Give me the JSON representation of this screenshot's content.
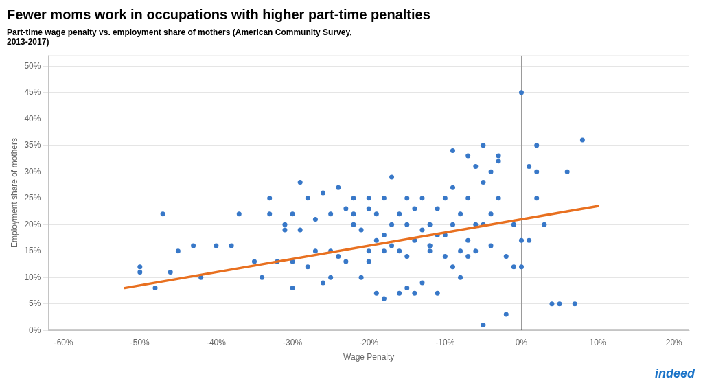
{
  "chart_data": {
    "type": "scatter",
    "title": "Fewer moms work in occupations with higher part-time penalties",
    "subtitle": "Part-time wage penalty vs. employment share of mothers (American Community Survey,\n2013-2017)",
    "xlabel": "Wage Penalty",
    "ylabel": "Employment share of mothers",
    "series": [
      {
        "type": "scatter",
        "color": "#3878C8",
        "x": [
          -0.5,
          -0.48,
          -0.46,
          -0.43,
          -0.42,
          -0.4,
          -0.38,
          -0.37,
          -0.35,
          -0.34,
          -0.33,
          -0.32,
          -0.31,
          -0.3,
          -0.3,
          -0.29,
          -0.29,
          -0.28,
          -0.28,
          -0.27,
          -0.27,
          -0.26,
          -0.26,
          -0.25,
          -0.25,
          -0.24,
          -0.24,
          -0.23,
          -0.23,
          -0.22,
          -0.22,
          -0.21,
          -0.21,
          -0.2,
          -0.2,
          -0.2,
          -0.19,
          -0.19,
          -0.19,
          -0.18,
          -0.18,
          -0.18,
          -0.17,
          -0.17,
          -0.17,
          -0.16,
          -0.16,
          -0.16,
          -0.15,
          -0.15,
          -0.15,
          -0.14,
          -0.14,
          -0.14,
          -0.13,
          -0.13,
          -0.13,
          -0.12,
          -0.12,
          -0.12,
          -0.11,
          -0.11,
          -0.11,
          -0.1,
          -0.1,
          -0.1,
          -0.09,
          -0.09,
          -0.09,
          -0.08,
          -0.08,
          -0.08,
          -0.07,
          -0.07,
          -0.07,
          -0.06,
          -0.06,
          -0.06,
          -0.05,
          -0.05,
          -0.05,
          -0.04,
          -0.04,
          -0.04,
          -0.03,
          -0.03,
          -0.02,
          -0.02,
          -0.01,
          -0.01,
          0.0,
          0.0,
          0.01,
          0.01,
          0.02,
          0.02,
          0.03,
          0.04,
          0.05,
          0.06,
          0.07,
          0.08,
          -0.5,
          -0.47,
          -0.45,
          -0.33,
          -0.31,
          -0.3,
          -0.25,
          -0.22,
          -0.2,
          -0.18,
          -0.15,
          -0.12,
          -0.09,
          -0.07,
          -0.05,
          -0.03,
          0.0,
          0.02
        ],
        "values": [
          0.12,
          0.08,
          0.11,
          0.16,
          0.1,
          0.16,
          0.16,
          0.22,
          0.13,
          0.1,
          0.22,
          0.13,
          0.19,
          0.13,
          0.22,
          0.28,
          0.19,
          0.25,
          0.12,
          0.15,
          0.21,
          0.26,
          0.09,
          0.15,
          0.22,
          0.14,
          0.27,
          0.13,
          0.23,
          0.22,
          0.25,
          0.19,
          0.1,
          0.13,
          0.23,
          0.15,
          0.22,
          0.17,
          0.07,
          0.15,
          0.25,
          0.06,
          0.2,
          0.16,
          0.29,
          0.15,
          0.22,
          0.07,
          0.2,
          0.25,
          0.08,
          0.17,
          0.23,
          0.07,
          0.19,
          0.25,
          0.09,
          0.16,
          0.2,
          0.15,
          0.18,
          0.23,
          0.07,
          0.18,
          0.25,
          0.14,
          0.34,
          0.2,
          0.27,
          0.15,
          0.22,
          0.1,
          0.33,
          0.25,
          0.17,
          0.31,
          0.2,
          0.15,
          0.35,
          0.2,
          0.01,
          0.22,
          0.3,
          0.16,
          0.33,
          0.25,
          0.03,
          0.14,
          0.12,
          0.2,
          0.17,
          0.45,
          0.31,
          0.17,
          0.35,
          0.3,
          0.2,
          0.05,
          0.05,
          0.3,
          0.05,
          0.36,
          0.11,
          0.22,
          0.15,
          0.25,
          0.2,
          0.08,
          0.1,
          0.2,
          0.25,
          0.18,
          0.14,
          0.16,
          0.12,
          0.14,
          0.28,
          0.32,
          0.12,
          0.25
        ]
      },
      {
        "type": "line",
        "color": "#E87020",
        "x": [
          -0.52,
          0.1
        ],
        "values": [
          0.08,
          0.235
        ]
      },
      {
        "type": "vline",
        "color": "#999999",
        "x": [
          0.0
        ]
      }
    ],
    "annotations": [
      {
        "text": "indeed",
        "color": "#1A73C8"
      }
    ],
    "xlim": [
      -0.62,
      0.22
    ],
    "ylim": [
      0.0,
      0.52
    ],
    "xticks": [
      {
        "value": -0.6,
        "label": "-60%"
      },
      {
        "value": -0.5,
        "label": "-50%"
      },
      {
        "value": -0.4,
        "label": "-40%"
      },
      {
        "value": -0.3,
        "label": "-30%"
      },
      {
        "value": -0.2,
        "label": "-20%"
      },
      {
        "value": -0.1,
        "label": "-10%"
      },
      {
        "value": 0.0,
        "label": "0%"
      },
      {
        "value": 0.1,
        "label": "10%"
      },
      {
        "value": 0.2,
        "label": "20%"
      }
    ],
    "yticks": [
      {
        "value": 0.0,
        "label": "0%"
      },
      {
        "value": 0.05,
        "label": "5%"
      },
      {
        "value": 0.1,
        "label": "10%"
      },
      {
        "value": 0.15,
        "label": "15%"
      },
      {
        "value": 0.2,
        "label": "20%"
      },
      {
        "value": 0.25,
        "label": "25%"
      },
      {
        "value": 0.3,
        "label": "30%"
      },
      {
        "value": 0.35,
        "label": "35%"
      },
      {
        "value": 0.4,
        "label": "40%"
      },
      {
        "value": 0.45,
        "label": "45%"
      },
      {
        "value": 0.5,
        "label": "50%"
      }
    ],
    "grid": "y"
  }
}
